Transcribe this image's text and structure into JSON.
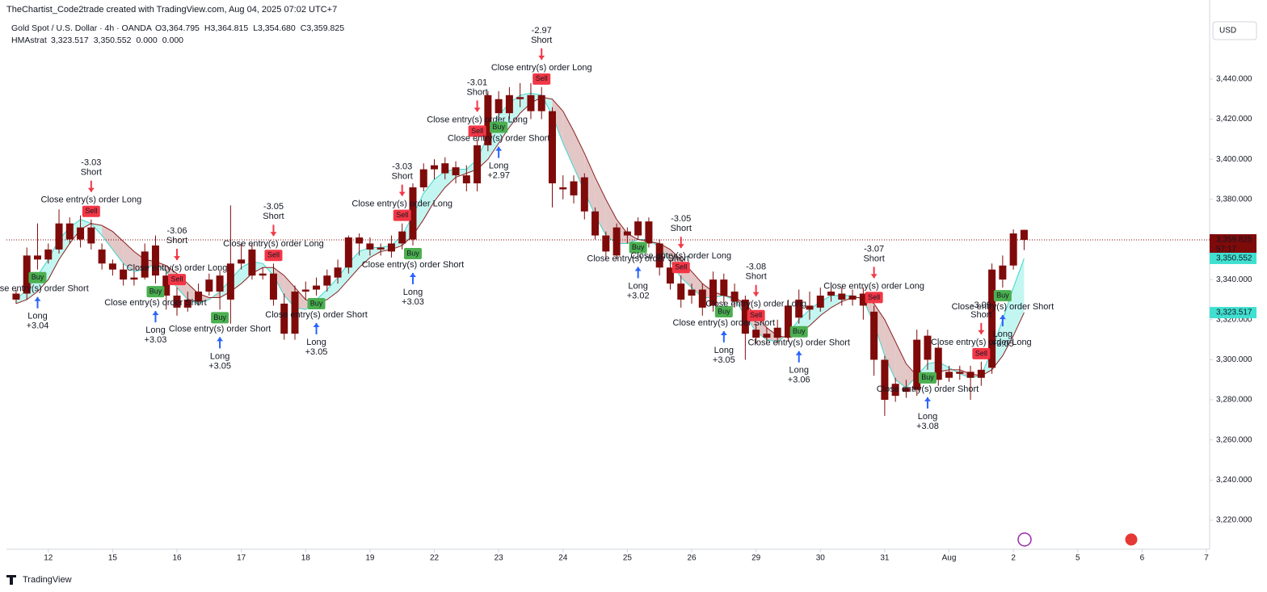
{
  "header": {
    "credit": "TheChartist_Code2trade created with TradingView.com, Aug 04, 2025 07:02 UTC+7",
    "symbol": "Gold Spot / U.S. Dollar · 4h · OANDA",
    "ohlc": [
      "O3,364.795",
      "H3,364.815",
      "L3,354.680",
      "C3,359.825"
    ],
    "indicator": "HMAstrat",
    "indicator_values": [
      "3,323.517",
      "3,350.552",
      "0.000",
      "0.000"
    ]
  },
  "currency": "USD",
  "footer": "TradingView",
  "chart_data": {
    "type": "candlestick",
    "color": "#7f0a0a",
    "open": [
      3330,
      3333,
      3352,
      3350,
      3355,
      3368,
      3360,
      3366,
      3355,
      3348,
      3345,
      3340,
      3341,
      3357,
      3342,
      3332,
      3326,
      3329,
      3334,
      3342,
      3330,
      3348,
      3355,
      3342,
      3343,
      3328,
      3313,
      3334,
      3335,
      3337,
      3341,
      3346,
      3361,
      3358,
      3355,
      3354,
      3358,
      3360,
      3386,
      3395,
      3393,
      3396,
      3392,
      3388,
      3407,
      3430,
      3423,
      3431,
      3432,
      3432,
      3424,
      3386,
      3389,
      3391,
      3374,
      3362,
      3352,
      3364,
      3362,
      3369,
      3358,
      3346,
      3338,
      3332,
      3335,
      3327,
      3340,
      3334,
      3330,
      3315,
      3311,
      3316,
      3311,
      3321,
      3327,
      3326,
      3332,
      3333,
      3330,
      3333,
      3324,
      3300,
      3288,
      3284,
      3285,
      3312,
      3306,
      3291,
      3294,
      3294,
      3291,
      3296,
      3340,
      3347,
      3364.795
    ],
    "high": [
      3335,
      3356,
      3368,
      3358,
      3375,
      3371,
      3372,
      3370,
      3358,
      3350,
      3348,
      3344,
      3358,
      3362,
      3345,
      3336,
      3334,
      3338,
      3343,
      3345,
      3377,
      3358,
      3358,
      3346,
      3348,
      3333,
      3337,
      3339,
      3341,
      3345,
      3350,
      3362,
      3363,
      3361,
      3358,
      3362,
      3368,
      3388,
      3398,
      3400,
      3401,
      3399,
      3397,
      3410,
      3434,
      3434,
      3436,
      3438,
      3438,
      3436,
      3426,
      3392,
      3392,
      3393,
      3376,
      3364,
      3368,
      3366,
      3371,
      3371,
      3360,
      3350,
      3342,
      3338,
      3338,
      3344,
      3343,
      3338,
      3332,
      3318,
      3316,
      3320,
      3330,
      3335,
      3334,
      3336,
      3337,
      3336,
      3335,
      3336,
      3327,
      3302,
      3291,
      3290,
      3315,
      3315,
      3308,
      3297,
      3297,
      3297,
      3299,
      3348,
      3352,
      3365,
      3364.815
    ],
    "low": [
      3328,
      3330,
      3345,
      3348,
      3353,
      3358,
      3356,
      3355,
      3345,
      3342,
      3337,
      3337,
      3340,
      3338,
      3325,
      3322,
      3324,
      3327,
      3332,
      3325,
      3318,
      3345,
      3340,
      3340,
      3327,
      3310,
      3310,
      3330,
      3332,
      3334,
      3338,
      3343,
      3352,
      3352,
      3352,
      3351,
      3355,
      3357,
      3384,
      3390,
      3390,
      3388,
      3384,
      3384,
      3404,
      3420,
      3420,
      3426,
      3420,
      3420,
      3376,
      3380,
      3378,
      3370,
      3360,
      3350,
      3350,
      3358,
      3360,
      3356,
      3342,
      3335,
      3326,
      3328,
      3322,
      3324,
      3328,
      3326,
      3300,
      3308,
      3309,
      3308,
      3309,
      3318,
      3320,
      3324,
      3329,
      3327,
      3327,
      3320,
      3292,
      3272,
      3279,
      3281,
      3282,
      3295,
      3287,
      3289,
      3290,
      3280,
      3287,
      3293,
      3336,
      3345,
      3354.68
    ],
    "close": [
      3333,
      3352,
      3350,
      3355,
      3368,
      3360,
      3366,
      3358,
      3348,
      3345,
      3340,
      3341,
      3354,
      3342,
      3332,
      3326,
      3330,
      3334,
      3340,
      3334,
      3348,
      3350,
      3342,
      3343,
      3330,
      3313,
      3334,
      3335,
      3337,
      3342,
      3346,
      3361,
      3358,
      3355,
      3356,
      3358,
      3364,
      3386,
      3395,
      3397,
      3398,
      3392,
      3388,
      3407,
      3432,
      3423,
      3432,
      3430,
      3424,
      3424,
      3388,
      3385,
      3382,
      3374,
      3362,
      3354,
      3366,
      3362,
      3369,
      3358,
      3346,
      3338,
      3330,
      3335,
      3326,
      3340,
      3332,
      3329,
      3313,
      3311,
      3313,
      3311,
      3327,
      3330,
      3325,
      3332,
      3334,
      3330,
      3332,
      3327,
      3300,
      3280,
      3282,
      3286,
      3310,
      3300,
      3290,
      3294,
      3293,
      3291,
      3295,
      3345,
      3347,
      3363,
      3359.825
    ],
    "bands": [
      {
        "color": "#3fd6c9",
        "values": [
          3330,
          3335,
          3342,
          3350,
          3360,
          3366,
          3370,
          3368,
          3362,
          3355,
          3348,
          3344,
          3345,
          3348,
          3344,
          3336,
          3330,
          3328,
          3330,
          3334,
          3340,
          3346,
          3349,
          3348,
          3342,
          3332,
          3326,
          3325,
          3330,
          3335,
          3341,
          3348,
          3354,
          3356,
          3356,
          3357,
          3362,
          3372,
          3383,
          3390,
          3394,
          3395,
          3395,
          3400,
          3412,
          3422,
          3428,
          3432,
          3433,
          3432,
          3422,
          3408,
          3396,
          3384,
          3372,
          3362,
          3358,
          3358,
          3360,
          3360,
          3356,
          3349,
          3341,
          3336,
          3331,
          3331,
          3332,
          3330,
          3322,
          3314,
          3310,
          3309,
          3313,
          3320,
          3325,
          3329,
          3332,
          3332,
          3332,
          3330,
          3318,
          3302,
          3290,
          3286,
          3292,
          3298,
          3299,
          3296,
          3293,
          3291,
          3292,
          3305,
          3320,
          3336,
          3350.552
        ]
      },
      {
        "color": "#8b1f1f",
        "values": [
          3328,
          3330,
          3334,
          3340,
          3350,
          3358,
          3365,
          3368,
          3367,
          3364,
          3359,
          3354,
          3350,
          3349,
          3347,
          3343,
          3338,
          3333,
          3331,
          3331,
          3334,
          3338,
          3343,
          3346,
          3346,
          3342,
          3336,
          3330,
          3328,
          3330,
          3334,
          3340,
          3346,
          3351,
          3354,
          3355,
          3357,
          3362,
          3370,
          3379,
          3386,
          3391,
          3393,
          3395,
          3400,
          3408,
          3416,
          3423,
          3428,
          3431,
          3430,
          3424,
          3414,
          3403,
          3391,
          3380,
          3370,
          3363,
          3360,
          3359,
          3358,
          3355,
          3350,
          3344,
          3338,
          3334,
          3332,
          3331,
          3328,
          3322,
          3316,
          3312,
          3311,
          3313,
          3317,
          3322,
          3326,
          3329,
          3331,
          3331,
          3328,
          3320,
          3309,
          3298,
          3292,
          3292,
          3294,
          3295,
          3295,
          3293,
          3292,
          3295,
          3302,
          3312,
          3323.517
        ]
      }
    ],
    "fill_up": "#b4f4ee",
    "fill_down": "#dcb9b9",
    "xlim": [
      -0.9,
      111.3
    ],
    "xticks": [
      {
        "value": 3,
        "label": "12"
      },
      {
        "value": 9,
        "label": "15"
      },
      {
        "value": 15,
        "label": "16"
      },
      {
        "value": 21,
        "label": "17"
      },
      {
        "value": 27,
        "label": "18"
      },
      {
        "value": 33,
        "label": "19"
      },
      {
        "value": 39,
        "label": "22"
      },
      {
        "value": 45,
        "label": "23"
      },
      {
        "value": 51,
        "label": "24"
      },
      {
        "value": 57,
        "label": "25"
      },
      {
        "value": 63,
        "label": "26"
      },
      {
        "value": 69,
        "label": "29"
      },
      {
        "value": 75,
        "label": "30"
      },
      {
        "value": 81,
        "label": "31"
      },
      {
        "value": 87,
        "label": "Aug"
      },
      {
        "value": 93,
        "label": "2"
      },
      {
        "value": 99,
        "label": "5"
      },
      {
        "value": 105,
        "label": "6"
      },
      {
        "value": 111,
        "label": "7"
      }
    ],
    "ylim": [
      3205.5,
      3471.4
    ],
    "yticks": [
      {
        "value": 3220,
        "label": "3,220.000"
      },
      {
        "value": 3240,
        "label": "3,240.000"
      },
      {
        "value": 3260,
        "label": "3,260.000"
      },
      {
        "value": 3280,
        "label": "3,280.000"
      },
      {
        "value": 3300,
        "label": "3,300.000"
      },
      {
        "value": 3320,
        "label": "3,320.000"
      },
      {
        "value": 3340,
        "label": "3,340.000"
      },
      {
        "value": 3360,
        "label": "3,360.000"
      },
      {
        "value": 3380,
        "label": "3,380.000"
      },
      {
        "value": 3400,
        "label": "3,400.000"
      },
      {
        "value": 3420,
        "label": "3,420.000"
      },
      {
        "value": 3440,
        "label": "3,440.000"
      }
    ],
    "last_label": "3,359.825",
    "countdown": "57:17",
    "signals": [
      {
        "bar": 2,
        "side": "Long",
        "value": "+3.04",
        "close": "Close entry(s) order Short",
        "badge": "Buy"
      },
      {
        "bar": 7,
        "side": "Short",
        "value": "-3.03",
        "close": "Close entry(s) order Long",
        "badge": "Sell"
      },
      {
        "bar": 13,
        "side": "Long",
        "value": "+3.03",
        "close": "Close entry(s) order Short",
        "badge": "Buy"
      },
      {
        "bar": 15,
        "side": "Short",
        "value": "-3.06",
        "close": "Close entry(s) order Long",
        "badge": "Sell"
      },
      {
        "bar": 19,
        "side": "Long",
        "value": "+3.05",
        "close": "Close entry(s) order Short",
        "badge": "Buy"
      },
      {
        "bar": 24,
        "side": "Short",
        "value": "-3.05",
        "close": "Close entry(s) order Long",
        "badge": "Sell"
      },
      {
        "bar": 28,
        "side": "Long",
        "value": "+3.05",
        "close": "Close entry(s) order Short",
        "badge": "Buy"
      },
      {
        "bar": 36,
        "side": "Short",
        "value": "-3.03",
        "close": "Close entry(s) order Long",
        "badge": "Sell"
      },
      {
        "bar": 37,
        "side": "Long",
        "value": "+3.03",
        "close": "Close entry(s) order Short",
        "badge": "Buy"
      },
      {
        "bar": 43,
        "side": "Short",
        "value": "-3.01",
        "close": "Close entry(s) order Long",
        "badge": "Sell"
      },
      {
        "bar": 45,
        "side": "Long",
        "value": "+2.97",
        "close": "Close entry(s) order Short",
        "badge": "Buy"
      },
      {
        "bar": 49,
        "side": "Short",
        "value": "-2.97",
        "close": "Close entry(s) order Long",
        "badge": "Sell"
      },
      {
        "bar": 58,
        "side": "Long",
        "value": "+3.02",
        "close": "Close entry(s) order Short",
        "badge": "Buy"
      },
      {
        "bar": 62,
        "side": "Short",
        "value": "-3.05",
        "close": "Close entry(s) order Long",
        "badge": "Sell"
      },
      {
        "bar": 66,
        "side": "Long",
        "value": "+3.05",
        "close": "Close entry(s) order Short",
        "badge": "Buy"
      },
      {
        "bar": 69,
        "side": "Short",
        "value": "-3.08",
        "close": "Close entry(s) order Long",
        "badge": "Sell"
      },
      {
        "bar": 73,
        "side": "Long",
        "value": "+3.06",
        "close": "Close entry(s) order Short",
        "badge": "Buy"
      },
      {
        "bar": 80,
        "side": "Short",
        "value": "-3.07",
        "close": "Close entry(s) order Long",
        "badge": "Sell"
      },
      {
        "bar": 85,
        "side": "Long",
        "value": "+3.08",
        "close": "Close entry(s) order Short",
        "badge": "Buy"
      },
      {
        "bar": 90,
        "side": "Short",
        "value": "-3.09",
        "close": "Close entry(s) order Long",
        "badge": "Sell"
      },
      {
        "bar": 92,
        "side": "Long",
        "value": "+3.05",
        "close": "Close entry(s) order Short",
        "badge": "Buy"
      }
    ]
  }
}
